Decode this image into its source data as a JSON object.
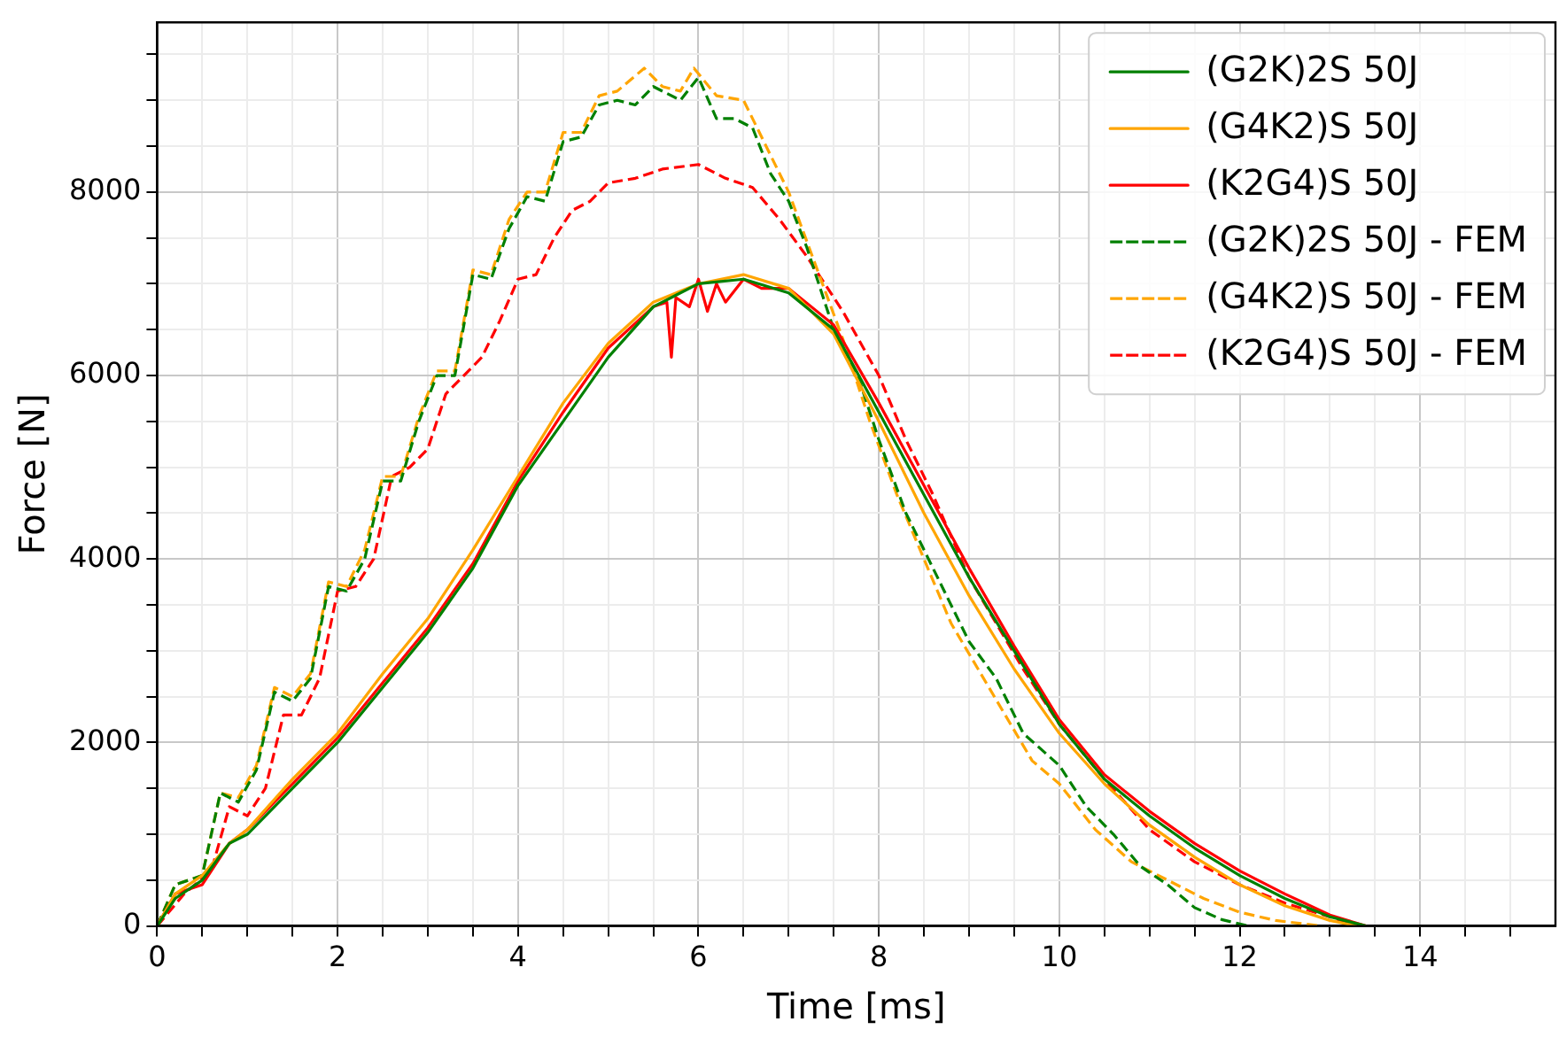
{
  "chart_data": {
    "type": "line",
    "xlabel": "Time [ms]",
    "ylabel": "Force [N]",
    "xlim": [
      0,
      15.5
    ],
    "ylim": [
      0,
      9850
    ],
    "xticks": [
      0,
      {
        "value": 0.5,
        "label": null
      },
      {
        "value": 1,
        "label": null
      },
      {
        "value": 1.5,
        "label": null
      },
      2,
      {
        "value": 2.5,
        "label": null
      },
      {
        "value": 3,
        "label": null
      },
      {
        "value": 3.5,
        "label": null
      },
      4,
      {
        "value": 4.5,
        "label": null
      },
      {
        "value": 5,
        "label": null
      },
      {
        "value": 5.5,
        "label": null
      },
      6,
      {
        "value": 6.5,
        "label": null
      },
      {
        "value": 7,
        "label": null
      },
      {
        "value": 7.5,
        "label": null
      },
      8,
      {
        "value": 8.5,
        "label": null
      },
      {
        "value": 9,
        "label": null
      },
      {
        "value": 9.5,
        "label": null
      },
      10,
      {
        "value": 10.5,
        "label": null
      },
      {
        "value": 11,
        "label": null
      },
      {
        "value": 11.5,
        "label": null
      },
      12,
      {
        "value": 12.5,
        "label": null
      },
      {
        "value": 13,
        "label": null
      },
      {
        "value": 13.5,
        "label": null
      },
      14,
      {
        "value": 14.5,
        "label": null
      },
      {
        "value": 15,
        "label": null
      }
    ],
    "yticks": [
      0,
      {
        "value": 500,
        "label": null
      },
      {
        "value": 1000,
        "label": null
      },
      {
        "value": 1500,
        "label": null
      },
      2000,
      {
        "value": 2500,
        "label": null
      },
      {
        "value": 3000,
        "label": null
      },
      {
        "value": 3500,
        "label": null
      },
      4000,
      {
        "value": 4500,
        "label": null
      },
      {
        "value": 5000,
        "label": null
      },
      {
        "value": 5500,
        "label": null
      },
      6000,
      {
        "value": 6500,
        "label": null
      },
      {
        "value": 7000,
        "label": null
      },
      {
        "value": 7500,
        "label": null
      },
      8000,
      {
        "value": 8500,
        "label": null
      },
      {
        "value": 9000,
        "label": null
      },
      {
        "value": 9500,
        "label": null
      }
    ],
    "grid": true,
    "legend": "top right",
    "marker": "none",
    "series": [
      {
        "name": "(G2K)2S 50J",
        "color": "#008000",
        "line_style": "solid",
        "x": [
          0,
          0.2,
          0.5,
          0.8,
          1,
          1.5,
          2,
          2.5,
          3,
          3.5,
          4,
          4.5,
          5,
          5.5,
          6,
          6.5,
          7,
          7.5,
          8,
          8.5,
          9,
          9.5,
          10,
          10.5,
          11,
          11.5,
          12,
          12.5,
          13,
          13.4
        ],
        "values": [
          0,
          300,
          500,
          900,
          1000,
          1500,
          2000,
          2600,
          3200,
          3900,
          4800,
          5500,
          6200,
          6750,
          7000,
          7050,
          6900,
          6500,
          5600,
          4700,
          3800,
          3000,
          2200,
          1600,
          1200,
          850,
          550,
          300,
          100,
          0
        ]
      },
      {
        "name": "(G4K2)S 50J",
        "color": "#ffa500",
        "line_style": "solid",
        "x": [
          0,
          0.2,
          0.5,
          0.8,
          1,
          1.5,
          2,
          2.5,
          3,
          3.5,
          4,
          4.5,
          5,
          5.5,
          6,
          6.5,
          7,
          7.5,
          8,
          8.5,
          9,
          9.5,
          10,
          10.5,
          11,
          11.5,
          12,
          12.5,
          13,
          13.3
        ],
        "values": [
          0,
          350,
          550,
          900,
          1050,
          1600,
          2100,
          2750,
          3350,
          4100,
          4900,
          5700,
          6350,
          6800,
          7000,
          7100,
          6950,
          6450,
          5500,
          4500,
          3600,
          2800,
          2100,
          1550,
          1100,
          750,
          450,
          220,
          60,
          0
        ]
      },
      {
        "name": "(K2G4)S 50J",
        "color": "#ff0000",
        "line_style": "solid",
        "x": [
          0,
          0.2,
          0.5,
          0.8,
          1,
          1.5,
          2,
          2.5,
          3,
          3.5,
          4,
          4.5,
          5,
          5.5,
          5.65,
          5.7,
          5.75,
          5.9,
          6,
          6.1,
          6.2,
          6.3,
          6.5,
          6.7,
          7,
          7.5,
          8,
          8.5,
          9,
          9.5,
          10,
          10.5,
          11,
          11.5,
          12,
          12.5,
          13,
          13.4
        ],
        "values": [
          0,
          350,
          450,
          900,
          1050,
          1550,
          2050,
          2650,
          3250,
          3950,
          4850,
          5600,
          6300,
          6750,
          6800,
          6200,
          6850,
          6750,
          7050,
          6700,
          7000,
          6800,
          7050,
          6950,
          6950,
          6550,
          5700,
          4800,
          3900,
          3050,
          2250,
          1650,
          1250,
          900,
          600,
          350,
          120,
          0
        ]
      },
      {
        "name": "(G2K)2S 50J - FEM",
        "color": "#008000",
        "line_style": "dashed",
        "x": [
          0,
          0.2,
          0.5,
          0.7,
          0.9,
          1.1,
          1.3,
          1.5,
          1.7,
          1.9,
          2.1,
          2.3,
          2.5,
          2.7,
          2.9,
          3.1,
          3.3,
          3.5,
          3.7,
          3.9,
          4.1,
          4.3,
          4.5,
          4.7,
          4.9,
          5.1,
          5.3,
          5.5,
          5.8,
          6,
          6.2,
          6.4,
          6.6,
          6.8,
          7,
          7.2,
          7.5,
          7.8,
          8,
          8.3,
          8.6,
          9,
          9.3,
          9.6,
          10,
          10.3,
          10.6,
          10.9,
          11.2,
          11.5,
          11.8,
          12.1
        ],
        "values": [
          0,
          450,
          550,
          1450,
          1350,
          1700,
          2550,
          2450,
          2700,
          3700,
          3650,
          4000,
          4850,
          4850,
          5500,
          6000,
          6000,
          7100,
          7050,
          7600,
          7950,
          7900,
          8550,
          8600,
          8950,
          9000,
          8950,
          9150,
          9000,
          9250,
          8800,
          8800,
          8700,
          8200,
          7900,
          7400,
          6500,
          5900,
          5300,
          4500,
          3900,
          3100,
          2700,
          2100,
          1750,
          1300,
          1000,
          650,
          450,
          200,
          70,
          0
        ]
      },
      {
        "name": "(G4K2)S 50J - FEM",
        "color": "#ffa500",
        "line_style": "dashed",
        "x": [
          0,
          0.2,
          0.5,
          0.7,
          0.9,
          1.1,
          1.3,
          1.5,
          1.7,
          1.9,
          2.1,
          2.3,
          2.5,
          2.7,
          2.9,
          3.1,
          3.3,
          3.5,
          3.7,
          3.9,
          4.1,
          4.3,
          4.5,
          4.7,
          4.9,
          5.1,
          5.4,
          5.6,
          5.8,
          5.95,
          6.2,
          6.5,
          6.8,
          7,
          7.3,
          7.6,
          7.9,
          8.2,
          8.5,
          8.8,
          9.1,
          9.4,
          9.7,
          10,
          10.4,
          10.8,
          11.2,
          11.6,
          12,
          12.4,
          12.9
        ],
        "values": [
          0,
          450,
          550,
          1450,
          1400,
          1750,
          2600,
          2500,
          2750,
          3750,
          3700,
          4100,
          4900,
          4900,
          5550,
          6050,
          6050,
          7150,
          7100,
          7700,
          8000,
          8000,
          8650,
          8650,
          9050,
          9100,
          9350,
          9150,
          9100,
          9350,
          9050,
          9000,
          8400,
          8000,
          7200,
          6400,
          5500,
          4700,
          4000,
          3300,
          2800,
          2300,
          1800,
          1550,
          1050,
          700,
          500,
          300,
          150,
          60,
          0
        ]
      },
      {
        "name": "(K2G4)S 50J - FEM",
        "color": "#ff0000",
        "line_style": "dashed",
        "x": [
          0,
          0.3,
          0.6,
          0.8,
          1,
          1.2,
          1.4,
          1.6,
          1.8,
          2,
          2.2,
          2.4,
          2.6,
          2.8,
          3,
          3.2,
          3.4,
          3.6,
          3.8,
          4,
          4.2,
          4.4,
          4.6,
          4.8,
          5,
          5.3,
          5.6,
          6,
          6.3,
          6.6,
          6.9,
          7.2,
          7.6,
          8,
          8.3,
          8.6,
          9,
          9.3,
          9.6,
          10,
          10.5,
          11,
          11.5,
          12,
          12.5,
          13,
          13.3
        ],
        "values": [
          0,
          350,
          600,
          1300,
          1200,
          1500,
          2300,
          2300,
          2700,
          3650,
          3700,
          4000,
          4900,
          5000,
          5200,
          5800,
          6000,
          6200,
          6600,
          7050,
          7100,
          7500,
          7800,
          7900,
          8100,
          8150,
          8250,
          8300,
          8150,
          8050,
          7700,
          7300,
          6700,
          6000,
          5300,
          4700,
          3800,
          3300,
          2800,
          2200,
          1600,
          1050,
          700,
          450,
          250,
          100,
          0
        ]
      }
    ]
  }
}
